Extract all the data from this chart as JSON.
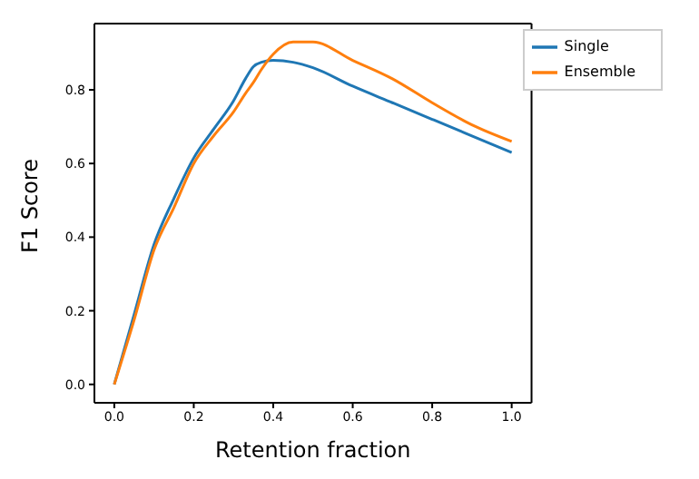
{
  "chart_data": {
    "type": "line",
    "xlabel": "Retention fraction",
    "ylabel": "F1 Score",
    "x": [
      0,
      0.05,
      0.1,
      0.15,
      0.2,
      0.25,
      0.3,
      0.33,
      0.35,
      0.37,
      0.4,
      0.45,
      0.5,
      0.6,
      0.7,
      0.8,
      0.9,
      1.0
    ],
    "series": [
      {
        "name": "Single",
        "color": "#1f77b4",
        "values": [
          0,
          0.19,
          0.38,
          0.505,
          0.615,
          0.693,
          0.77,
          0.83,
          0.863,
          0.875,
          0.88,
          0.875,
          0.86,
          0.81,
          0.765,
          0.72,
          0.675,
          0.63
        ]
      },
      {
        "name": "Ensemble",
        "color": "#ff7f0e",
        "values": [
          0,
          0.175,
          0.365,
          0.48,
          0.6,
          0.675,
          0.74,
          0.79,
          0.82,
          0.855,
          0.897,
          0.93,
          0.93,
          0.88,
          0.83,
          0.765,
          0.705,
          0.66
        ]
      }
    ],
    "xlim": [
      -0.05,
      1.05
    ],
    "xticks": [
      {
        "value": 0,
        "label": "0.0"
      },
      0.2,
      0.4,
      0.6,
      0.8,
      {
        "value": 1,
        "label": "1.0"
      }
    ],
    "ylim": [
      -0.05,
      0.98
    ],
    "yticks": [
      {
        "value": 0,
        "label": "0.0"
      },
      0.2,
      0.4,
      0.6,
      0.8
    ],
    "grid": false,
    "legend": "top right",
    "marker": "none",
    "line_style": "solid"
  }
}
